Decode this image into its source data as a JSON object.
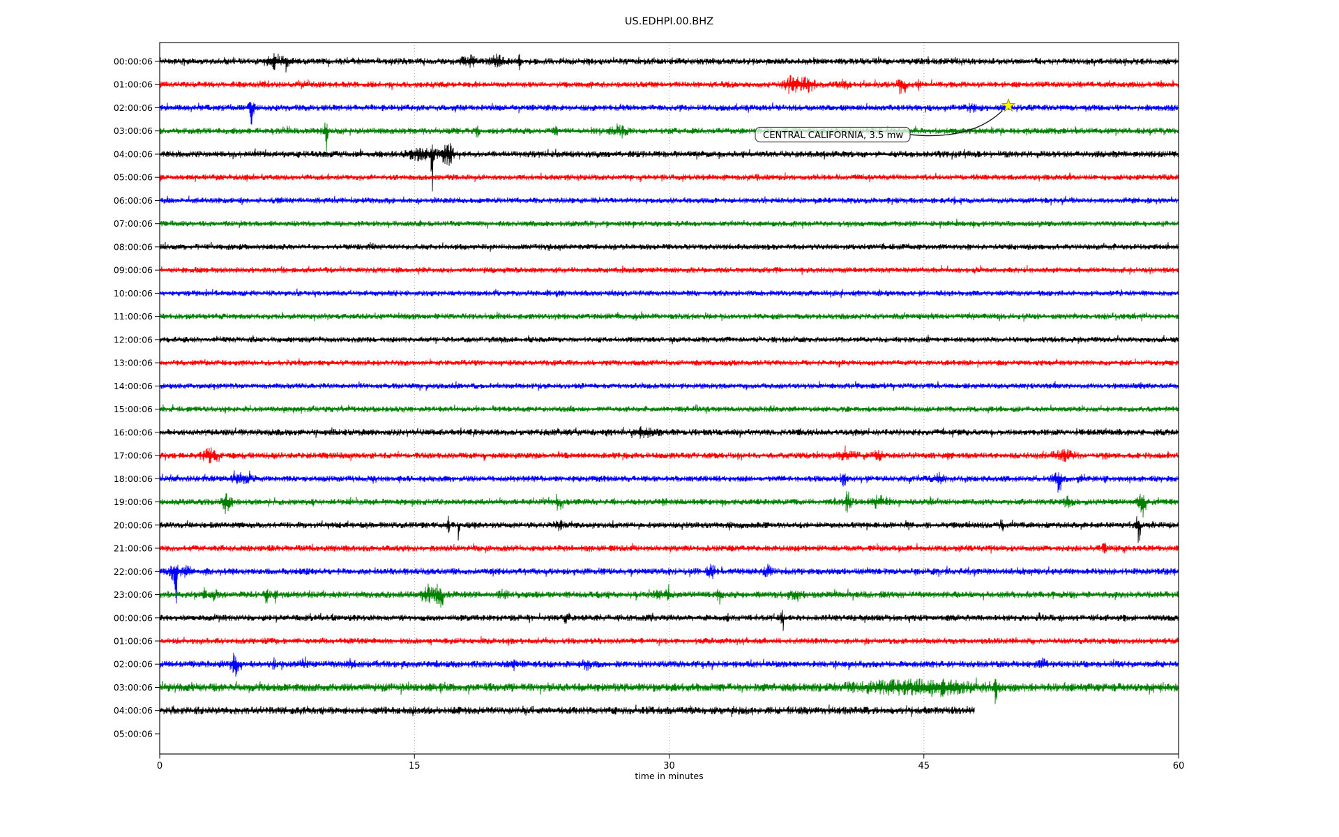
{
  "title": "US.EDHPI.00.BHZ",
  "chart_data": {
    "type": "line",
    "subtype": "helicorder-day-plot-seismogram",
    "station": "US.EDHPI.00.BHZ",
    "xlabel": "time in minutes",
    "x_ticks": [
      0,
      15,
      30,
      45,
      60
    ],
    "x_range_minutes": [
      0,
      60
    ],
    "grid": {
      "vertical_dotted_at_minutes": [
        15,
        30,
        45
      ],
      "color": "#aaaaaa"
    },
    "trace_color_cycle": [
      "#000000",
      "#ff0000",
      "#0000ff",
      "#008000"
    ],
    "minutes_per_row": 60,
    "annotation": {
      "text": "CENTRAL CALIFORNIA, 3.5 mw",
      "marker": "yellow-star",
      "marker_color": "#ffff00",
      "event_row_label": "02:00:06",
      "event_minute": 50
    },
    "rows": [
      {
        "label": "00:00:06",
        "color": "#000000",
        "na": 1.05,
        "events": [
          {
            "m": 6.6,
            "a": 2.2,
            "w": 0.35
          },
          {
            "m": 7.4,
            "a": 1.8,
            "w": 0.3
          },
          {
            "m": 18.2,
            "a": 1.2,
            "w": 0.5
          },
          {
            "m": 19.9,
            "a": 1.5,
            "w": 0.4
          },
          {
            "m": 21.2,
            "a": 2.8,
            "w": 0.08
          }
        ]
      },
      {
        "label": "01:00:06",
        "color": "#ff0000",
        "na": 1,
        "events": [
          {
            "m": 37.3,
            "a": 2.2,
            "w": 0.5
          },
          {
            "m": 38.2,
            "a": 1.6,
            "w": 0.4
          },
          {
            "m": 40.4,
            "a": 1.0,
            "w": 0.15
          },
          {
            "m": 43.6,
            "a": 2.6,
            "w": 0.15
          },
          {
            "m": 43.9,
            "a": 2.0,
            "w": 0.12,
            "d": -1
          },
          {
            "m": 44.7,
            "a": 1.2,
            "w": 0.12
          }
        ]
      },
      {
        "label": "02:00:06",
        "color": "#0000ff",
        "na": 1,
        "events": [
          {
            "m": 5.4,
            "a": 1.8,
            "w": 0.15
          },
          {
            "m": 5.45,
            "a": 3.5,
            "w": 0.07,
            "d": -1
          },
          {
            "m": 47.9,
            "a": 0.8,
            "w": 0.4
          }
        ]
      },
      {
        "label": "03:00:06",
        "color": "#008000",
        "na": 1,
        "events": [
          {
            "m": 9.8,
            "a": 3.4,
            "w": 0.09
          },
          {
            "m": 9.9,
            "a": 1.6,
            "w": 0.12,
            "d": -1
          },
          {
            "m": 18.7,
            "a": 1.6,
            "w": 0.1
          },
          {
            "m": 23.3,
            "a": 1.0,
            "w": 0.15
          },
          {
            "m": 27.1,
            "a": 1.0,
            "w": 0.5
          }
        ]
      },
      {
        "label": "04:00:06",
        "color": "#000000",
        "na": 1.05,
        "events": [
          {
            "m": 15.3,
            "a": 1.6,
            "w": 0.6
          },
          {
            "m": 16.0,
            "a": 2.6,
            "w": 0.12
          },
          {
            "m": 16.05,
            "a": 3.2,
            "w": 0.08,
            "d": -1
          },
          {
            "m": 16.7,
            "a": 2.0,
            "w": 0.4
          },
          {
            "m": 17.1,
            "a": 1.8,
            "w": 0.2
          }
        ]
      },
      {
        "label": "05:00:06",
        "color": "#ff0000",
        "na": 0.92,
        "events": []
      },
      {
        "label": "06:00:06",
        "color": "#0000ff",
        "na": 0.92,
        "events": []
      },
      {
        "label": "07:00:06",
        "color": "#008000",
        "na": 0.92,
        "events": []
      },
      {
        "label": "08:00:06",
        "color": "#000000",
        "na": 0.92,
        "events": []
      },
      {
        "label": "09:00:06",
        "color": "#ff0000",
        "na": 0.92,
        "events": []
      },
      {
        "label": "10:00:06",
        "color": "#0000ff",
        "na": 0.92,
        "events": []
      },
      {
        "label": "11:00:06",
        "color": "#008000",
        "na": 0.95,
        "events": []
      },
      {
        "label": "12:00:06",
        "color": "#000000",
        "na": 0.92,
        "events": []
      },
      {
        "label": "13:00:06",
        "color": "#ff0000",
        "na": 0.92,
        "events": []
      },
      {
        "label": "14:00:06",
        "color": "#0000ff",
        "na": 0.92,
        "events": []
      },
      {
        "label": "15:00:06",
        "color": "#008000",
        "na": 0.92,
        "events": []
      },
      {
        "label": "16:00:06",
        "color": "#000000",
        "na": 1.05,
        "events": [
          {
            "m": 28.6,
            "a": 1.1,
            "w": 0.5
          }
        ]
      },
      {
        "label": "17:00:06",
        "color": "#ff0000",
        "na": 1,
        "events": [
          {
            "m": 2.9,
            "a": 1.9,
            "w": 0.4
          },
          {
            "m": 3.3,
            "a": 2.6,
            "w": 0.1,
            "d": -1
          },
          {
            "m": 40.5,
            "a": 1.3,
            "w": 0.5
          },
          {
            "m": 42.3,
            "a": 1.1,
            "w": 0.3
          },
          {
            "m": 53.2,
            "a": 1.2,
            "w": 0.6
          }
        ]
      },
      {
        "label": "18:00:06",
        "color": "#0000ff",
        "na": 1,
        "events": [
          {
            "m": 4.8,
            "a": 1.1,
            "w": 0.6
          },
          {
            "m": 40.3,
            "a": 2.2,
            "w": 0.12
          },
          {
            "m": 45.9,
            "a": 1.4,
            "w": 0.3
          },
          {
            "m": 52.9,
            "a": 2.0,
            "w": 0.25
          },
          {
            "m": 53.0,
            "a": 1.8,
            "w": 0.1,
            "d": -1
          },
          {
            "m": 54.2,
            "a": 1.1,
            "w": 0.15
          }
        ]
      },
      {
        "label": "19:00:06",
        "color": "#008000",
        "na": 1,
        "events": [
          {
            "m": 3.9,
            "a": 2.4,
            "w": 0.25
          },
          {
            "m": 4.1,
            "a": 1.8,
            "w": 0.15,
            "d": -1
          },
          {
            "m": 23.4,
            "a": 2.2,
            "w": 0.1
          },
          {
            "m": 23.6,
            "a": 1.8,
            "w": 0.1,
            "d": -1
          },
          {
            "m": 29.7,
            "a": 1.0,
            "w": 0.2
          },
          {
            "m": 40.5,
            "a": 2.6,
            "w": 0.2
          },
          {
            "m": 42.3,
            "a": 1.4,
            "w": 0.4
          },
          {
            "m": 45.4,
            "a": 1.5,
            "w": 0.08
          },
          {
            "m": 53.4,
            "a": 1.1,
            "w": 0.3
          },
          {
            "m": 57.8,
            "a": 2.4,
            "w": 0.2
          },
          {
            "m": 58.0,
            "a": 1.6,
            "w": 0.15,
            "d": -1
          }
        ]
      },
      {
        "label": "20:00:06",
        "color": "#000000",
        "na": 1,
        "events": [
          {
            "m": 17.0,
            "a": 3.6,
            "w": 0.06
          },
          {
            "m": 17.6,
            "a": 2.6,
            "w": 0.07,
            "d": -1
          },
          {
            "m": 23.5,
            "a": 1.0,
            "w": 0.3
          },
          {
            "m": 49.6,
            "a": 1.4,
            "w": 0.1
          },
          {
            "m": 57.6,
            "a": 2.8,
            "w": 0.1
          },
          {
            "m": 57.7,
            "a": 1.6,
            "w": 0.1,
            "d": -1
          }
        ]
      },
      {
        "label": "21:00:06",
        "color": "#ff0000",
        "na": 1,
        "events": [
          {
            "m": 55.6,
            "a": 2.6,
            "w": 0.08
          }
        ]
      },
      {
        "label": "22:00:06",
        "color": "#0000ff",
        "na": 1.05,
        "events": [
          {
            "m": 0.9,
            "a": 2.2,
            "w": 0.3
          },
          {
            "m": 0.95,
            "a": 2.8,
            "w": 0.1,
            "d": -1
          },
          {
            "m": 1.6,
            "a": 1.6,
            "w": 0.2
          },
          {
            "m": 2.7,
            "a": 1.0,
            "w": 0.15
          },
          {
            "m": 32.5,
            "a": 1.4,
            "w": 0.25
          },
          {
            "m": 35.8,
            "a": 1.6,
            "w": 0.2
          }
        ]
      },
      {
        "label": "23:00:06",
        "color": "#008000",
        "na": 1.1,
        "events": [
          {
            "m": 2.6,
            "a": 1.6,
            "w": 0.12
          },
          {
            "m": 3.2,
            "a": 1.4,
            "w": 0.1,
            "d": -1
          },
          {
            "m": 6.3,
            "a": 1.8,
            "w": 0.15
          },
          {
            "m": 6.8,
            "a": 1.6,
            "w": 0.12
          },
          {
            "m": 15.8,
            "a": 1.6,
            "w": 0.5
          },
          {
            "m": 16.4,
            "a": 2.2,
            "w": 0.12
          },
          {
            "m": 16.6,
            "a": 3.8,
            "w": 0.09,
            "d": -1
          },
          {
            "m": 20.3,
            "a": 1.1,
            "w": 0.2
          },
          {
            "m": 29.3,
            "a": 1.6,
            "w": 0.2
          },
          {
            "m": 29.9,
            "a": 1.4,
            "w": 0.15
          },
          {
            "m": 32.9,
            "a": 2.0,
            "w": 0.12
          },
          {
            "m": 33.1,
            "a": 1.8,
            "w": 0.1,
            "d": -1
          },
          {
            "m": 37.5,
            "a": 1.1,
            "w": 0.3
          }
        ]
      },
      {
        "label": "00:00:06",
        "color": "#000000",
        "na": 1,
        "events": [
          {
            "m": 24.0,
            "a": 1.3,
            "w": 0.12
          },
          {
            "m": 33.4,
            "a": 1.2,
            "w": 0.1
          },
          {
            "m": 36.65,
            "a": 1.8,
            "w": 0.08
          },
          {
            "m": 36.7,
            "a": 2.4,
            "w": 0.07,
            "d": -1
          }
        ]
      },
      {
        "label": "01:00:06",
        "color": "#ff0000",
        "na": 0.95,
        "events": []
      },
      {
        "label": "02:00:06",
        "color": "#0000ff",
        "na": 1.1,
        "events": [
          {
            "m": 4.4,
            "a": 2.0,
            "w": 0.25
          },
          {
            "m": 4.5,
            "a": 3.0,
            "w": 0.09,
            "d": -1
          },
          {
            "m": 6.7,
            "a": 1.3,
            "w": 0.12
          },
          {
            "m": 8.5,
            "a": 1.6,
            "w": 0.15
          },
          {
            "m": 11.3,
            "a": 0.9,
            "w": 0.2
          },
          {
            "m": 20.8,
            "a": 1.5,
            "w": 0.15
          },
          {
            "m": 25.1,
            "a": 1.3,
            "w": 0.2
          },
          {
            "m": 51.9,
            "a": 1.0,
            "w": 0.3
          }
        ]
      },
      {
        "label": "03:00:06",
        "color": "#008000",
        "na": 1.35,
        "events": [
          {
            "m": 43.5,
            "a": 0.9,
            "w": 3.0
          },
          {
            "m": 46.0,
            "a": 0.8,
            "w": 2.0
          },
          {
            "m": 49.2,
            "a": 2.2,
            "w": 0.1
          },
          {
            "m": 49.3,
            "a": 1.4,
            "w": 0.12,
            "d": -1
          }
        ]
      },
      {
        "label": "04:00:06",
        "color": "#000000",
        "na": 1.25,
        "end_min": 48.0,
        "events": []
      },
      {
        "label": "05:00:06",
        "color": "#ff0000",
        "na": 1,
        "no_trace": true,
        "events": []
      }
    ]
  }
}
